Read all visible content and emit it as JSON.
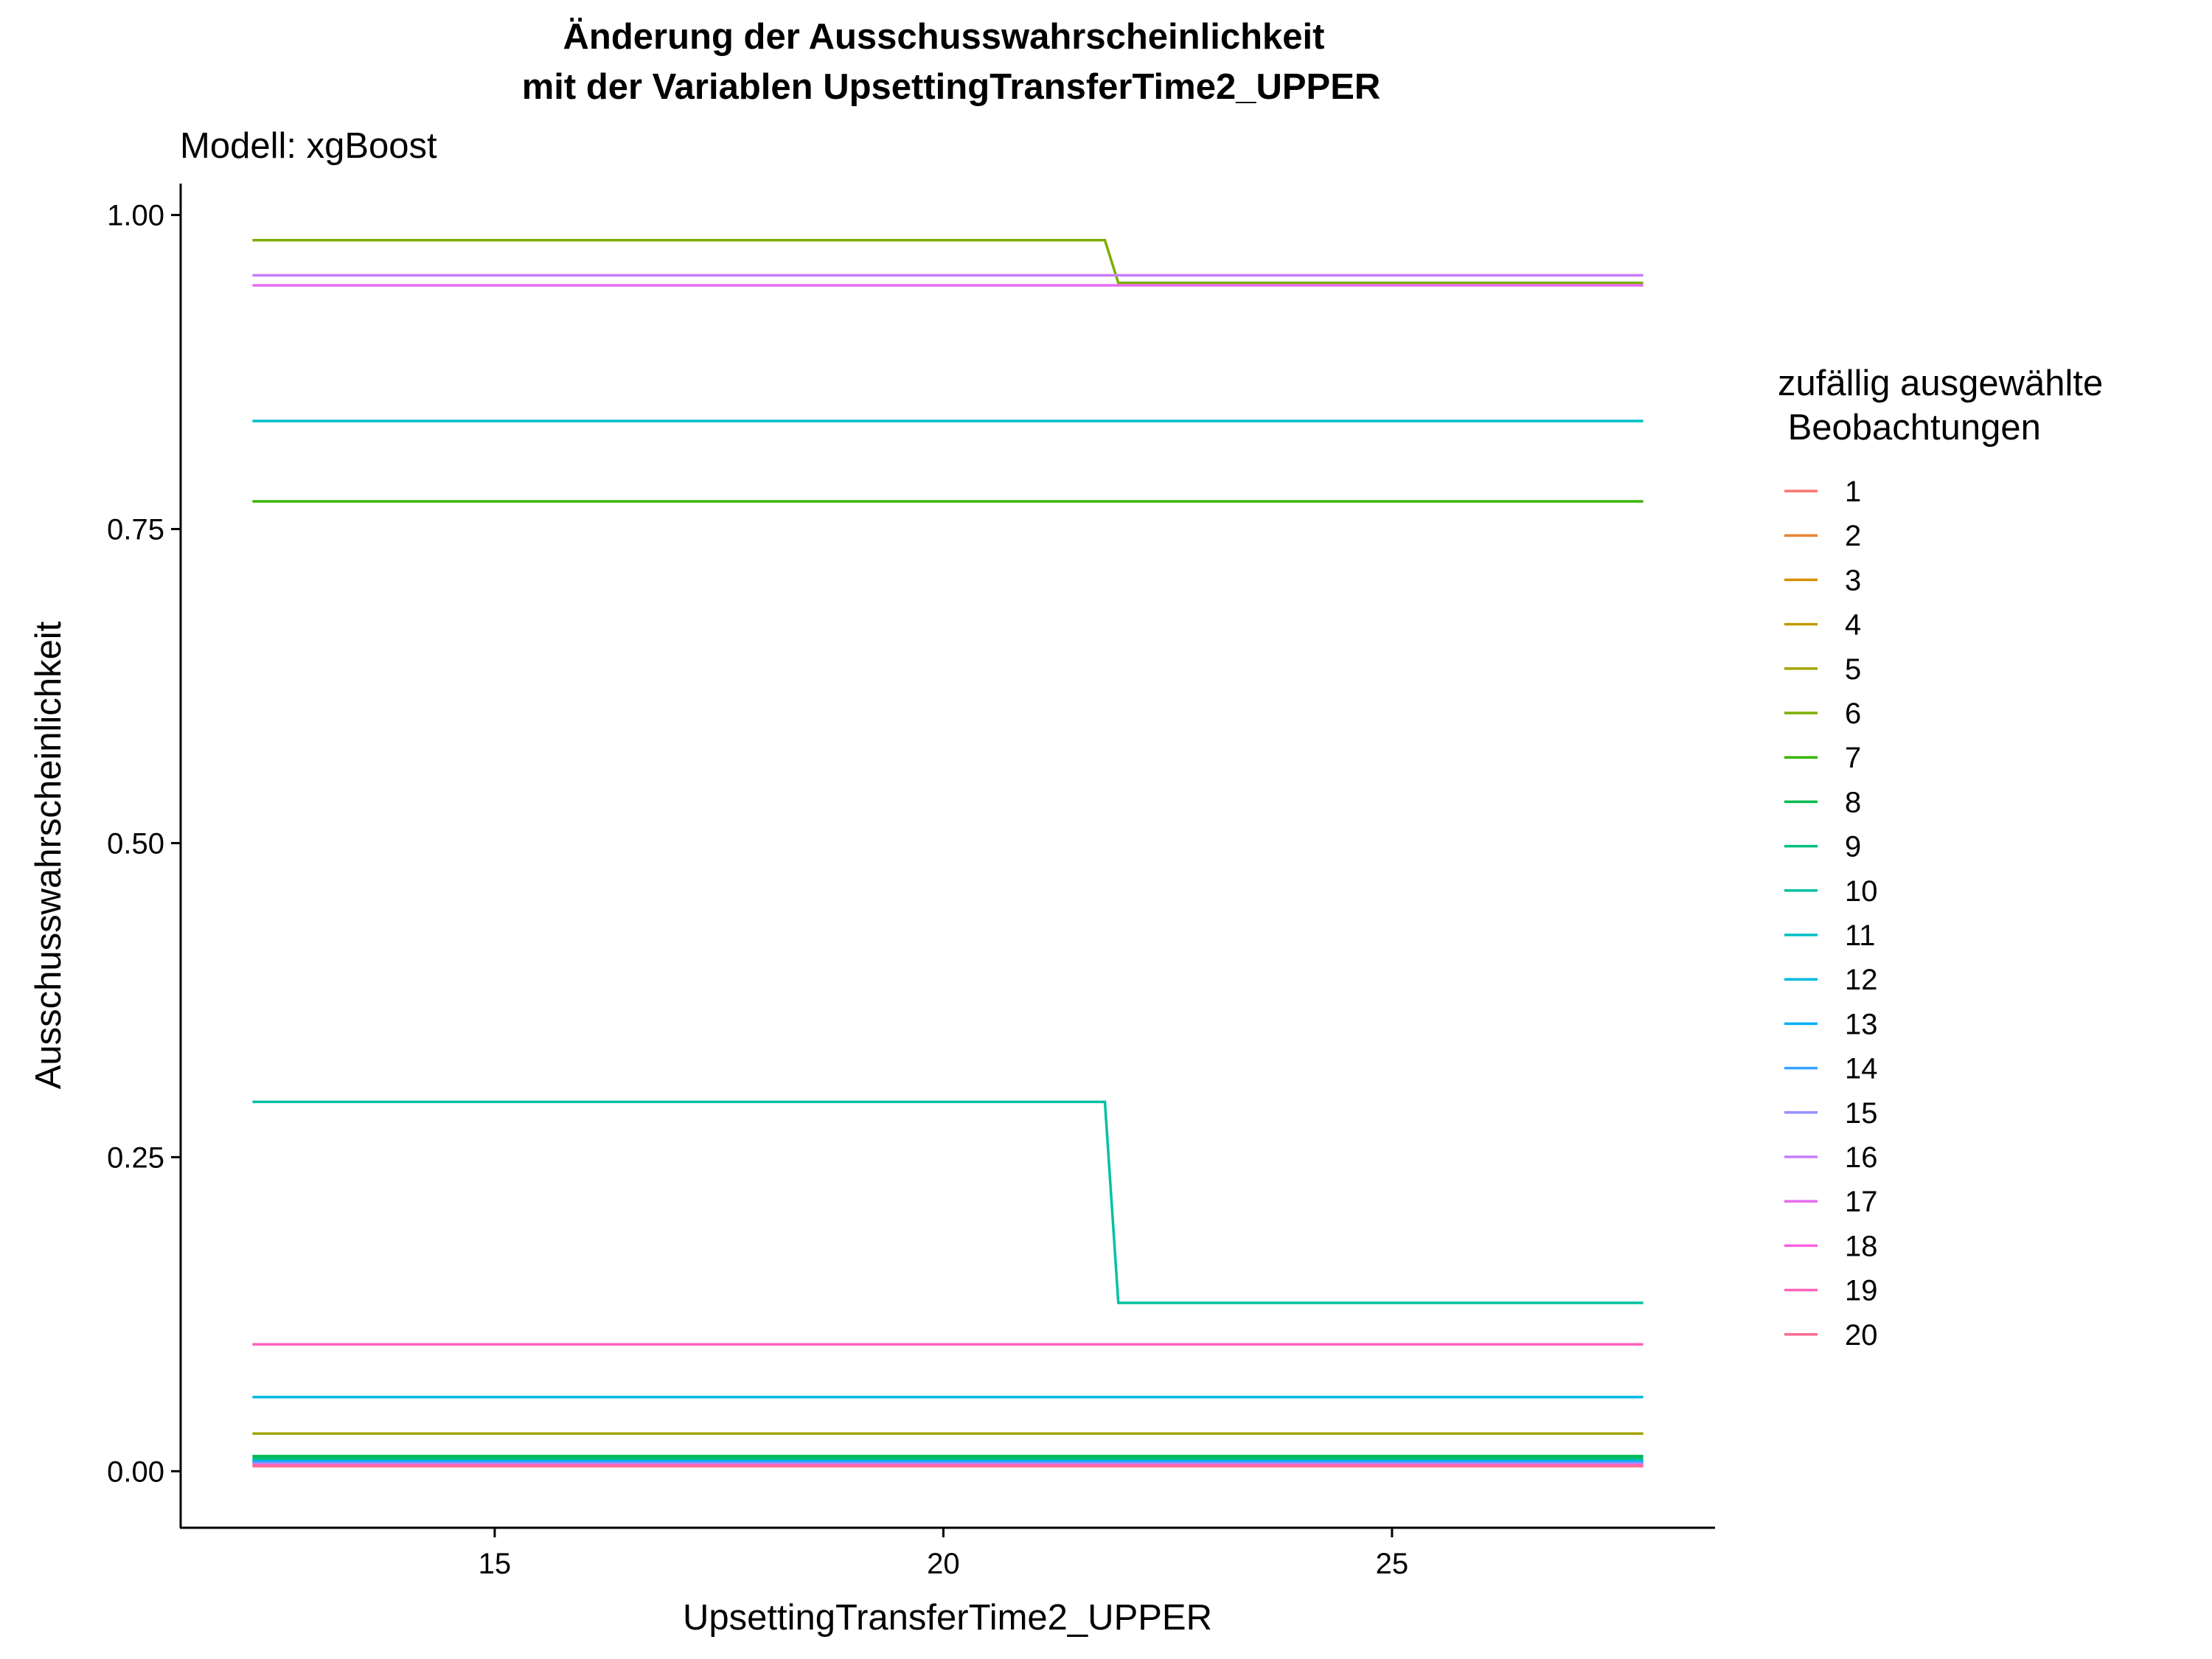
{
  "chart_data": {
    "type": "line",
    "title_line1": "Änderung der Ausschusswahrscheinlichkeit",
    "title_line2": "mit der Variablen UpsettingTransferTime2_UPPER",
    "subtitle": "Modell: xgBoost",
    "xlabel": "UpsettingTransferTime2_UPPER",
    "ylabel": "Ausschusswahrscheinlichkeit",
    "xlim": [
      11.5,
      28.6
    ],
    "ylim": [
      -0.045,
      1.025
    ],
    "xticks": [
      15,
      20,
      25
    ],
    "xtick_labels": [
      "15",
      "20",
      "25"
    ],
    "yticks": [
      0,
      0.25,
      0.5,
      0.75,
      1.0
    ],
    "ytick_labels": [
      "0.00",
      "0.25",
      "0.50",
      "0.75",
      "1.00"
    ],
    "grid": false,
    "legend_title_line1": "zufällig ausgewählte",
    "legend_title_line2": " Beobachtungen",
    "legend_position": "right",
    "series": [
      {
        "name": "1",
        "color": "#F8766D",
        "x": [
          12.3,
          27.8
        ],
        "values": [
          0.007,
          0.007
        ]
      },
      {
        "name": "2",
        "color": "#EA8331",
        "x": [
          12.3,
          27.8
        ],
        "values": [
          0.006,
          0.006
        ]
      },
      {
        "name": "3",
        "color": "#D89000",
        "x": [
          12.3,
          27.8
        ],
        "values": [
          0.008,
          0.008
        ]
      },
      {
        "name": "4",
        "color": "#C09B00",
        "x": [
          12.3,
          27.8
        ],
        "values": [
          0.009,
          0.009
        ]
      },
      {
        "name": "5",
        "color": "#A3A500",
        "x": [
          12.3,
          27.8
        ],
        "values": [
          0.03,
          0.03
        ]
      },
      {
        "name": "6",
        "color": "#7CAE00",
        "x": [
          12.3,
          21.8,
          21.95,
          27.8
        ],
        "values": [
          0.98,
          0.98,
          0.946,
          0.946
        ]
      },
      {
        "name": "7",
        "color": "#39B600",
        "x": [
          12.3,
          27.8
        ],
        "values": [
          0.772,
          0.772
        ]
      },
      {
        "name": "8",
        "color": "#00BB4E",
        "x": [
          12.3,
          27.8
        ],
        "values": [
          0.012,
          0.012
        ]
      },
      {
        "name": "9",
        "color": "#00BF7D",
        "x": [
          12.3,
          27.8
        ],
        "values": [
          0.01,
          0.01
        ]
      },
      {
        "name": "10",
        "color": "#00C1A3",
        "x": [
          12.3,
          21.8,
          21.95,
          27.8
        ],
        "values": [
          0.294,
          0.294,
          0.134,
          0.134
        ]
      },
      {
        "name": "11",
        "color": "#00BFC4",
        "x": [
          12.3,
          27.8
        ],
        "values": [
          0.836,
          0.836
        ]
      },
      {
        "name": "12",
        "color": "#00BAE0",
        "x": [
          12.3,
          27.8
        ],
        "values": [
          0.059,
          0.059
        ]
      },
      {
        "name": "13",
        "color": "#00B0F6",
        "x": [
          12.3,
          27.8
        ],
        "values": [
          0.008,
          0.008
        ]
      },
      {
        "name": "14",
        "color": "#35A2FF",
        "x": [
          12.3,
          27.8
        ],
        "values": [
          0.007,
          0.007
        ]
      },
      {
        "name": "15",
        "color": "#9590FF",
        "x": [
          12.3,
          27.8
        ],
        "values": [
          0.006,
          0.006
        ]
      },
      {
        "name": "16",
        "color": "#C77CFF",
        "x": [
          12.3,
          27.8
        ],
        "values": [
          0.952,
          0.952
        ]
      },
      {
        "name": "17",
        "color": "#E76BF3",
        "x": [
          12.3,
          27.8
        ],
        "values": [
          0.944,
          0.944
        ]
      },
      {
        "name": "18",
        "color": "#FA62DB",
        "x": [
          12.3,
          27.8
        ],
        "values": [
          0.005,
          0.005
        ]
      },
      {
        "name": "19",
        "color": "#FF62BC",
        "x": [
          12.3,
          27.8
        ],
        "values": [
          0.101,
          0.101
        ]
      },
      {
        "name": "20",
        "color": "#FF6C91",
        "x": [
          12.3,
          27.8
        ],
        "values": [
          0.004,
          0.004
        ]
      }
    ]
  }
}
